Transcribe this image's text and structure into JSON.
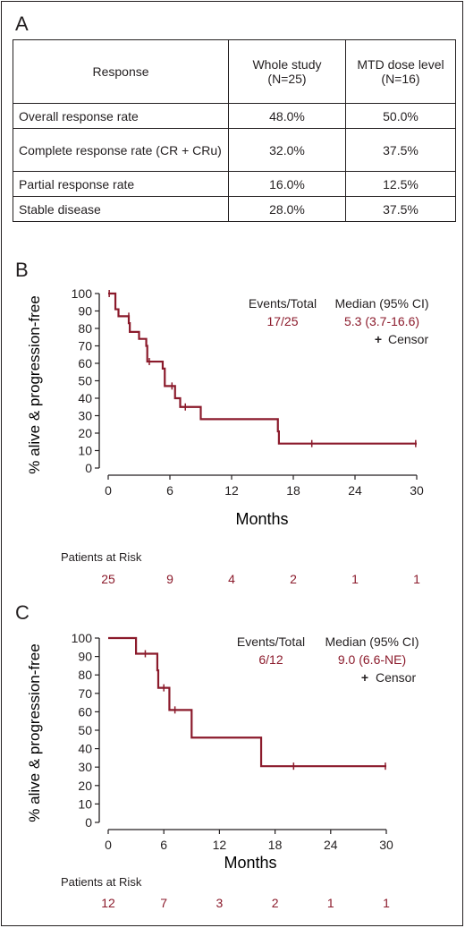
{
  "panel_a": {
    "label": "A",
    "headers": [
      "Response",
      "Whole study (N=25)",
      "MTD dose level (N=16)"
    ],
    "rows": [
      {
        "name": "Overall response rate",
        "whole": "48.0%",
        "mtd": "50.0%"
      },
      {
        "name": "Complete response rate (CR + CRu)",
        "whole": "32.0%",
        "mtd": "37.5%"
      },
      {
        "name": "Partial response rate",
        "whole": "16.0%",
        "mtd": "12.5%"
      },
      {
        "name": "Stable disease",
        "whole": "28.0%",
        "mtd": "37.5%"
      }
    ]
  },
  "panel_b": {
    "label": "B",
    "events_header": "Events/Total",
    "events_value": "17/25",
    "median_header": "Median (95% CI)",
    "median_value": "5.3 (3.7-16.6)",
    "censor_symbol": "+",
    "censor_label": "Censor",
    "risk_title": "Patients at Risk",
    "risk_counts": [
      "25",
      "9",
      "4",
      "2",
      "1",
      "1"
    ]
  },
  "panel_c": {
    "label": "C",
    "events_header": "Events/Total",
    "events_value": "6/12",
    "median_header": "Median (95% CI)",
    "median_value": "9.0 (6.6-NE)",
    "censor_symbol": "+",
    "censor_label": "Censor",
    "risk_title": "Patients at Risk",
    "risk_counts": [
      "12",
      "7",
      "3",
      "2",
      "1",
      "1"
    ]
  },
  "colors": {
    "curve": "#8b1a2b",
    "text": "#231f20",
    "highlight": "#8b1a2b"
  },
  "chart_data": [
    {
      "type": "line",
      "subtype": "kaplan-meier-step",
      "xlabel": "Months",
      "ylabel": "% alive & progression-free",
      "xlim": [
        0,
        30
      ],
      "ylim": [
        0,
        100
      ],
      "xticks": [
        0,
        6,
        12,
        18,
        24,
        30
      ],
      "yticks": [
        0,
        10,
        20,
        30,
        40,
        50,
        60,
        70,
        80,
        90,
        100
      ],
      "grid": false,
      "series": [
        {
          "steps": [
            [
              0,
              100
            ],
            [
              0.7,
              91
            ],
            [
              1,
              87
            ],
            [
              2,
              83
            ],
            [
              2.1,
              78
            ],
            [
              2.6,
              78
            ],
            [
              3,
              74
            ],
            [
              3.7,
              70
            ],
            [
              3.8,
              61
            ],
            [
              5.3,
              57
            ],
            [
              5.5,
              47
            ],
            [
              6.3,
              47
            ],
            [
              6.5,
              40
            ],
            [
              7,
              35
            ],
            [
              9,
              28
            ],
            [
              16.5,
              21
            ],
            [
              16.6,
              14
            ],
            [
              30,
              14
            ]
          ],
          "censors": [
            [
              0.1,
              100
            ],
            [
              2,
              87
            ],
            [
              4,
              61
            ],
            [
              6.2,
              47
            ],
            [
              7.5,
              35
            ],
            [
              19.8,
              14
            ],
            [
              29.9,
              14
            ]
          ]
        }
      ]
    },
    {
      "type": "line",
      "subtype": "kaplan-meier-step",
      "xlabel": "Months",
      "ylabel": "% alive & progression-free",
      "xlim": [
        0,
        30
      ],
      "ylim": [
        0,
        100
      ],
      "xticks": [
        0,
        6,
        12,
        18,
        24,
        30
      ],
      "yticks": [
        0,
        10,
        20,
        30,
        40,
        50,
        60,
        70,
        80,
        90,
        100
      ],
      "grid": false,
      "series": [
        {
          "steps": [
            [
              0,
              100
            ],
            [
              3,
              91.5
            ],
            [
              5.3,
              82.5
            ],
            [
              5.4,
              73
            ],
            [
              6.6,
              61
            ],
            [
              9,
              46
            ],
            [
              16.5,
              30.5
            ],
            [
              30,
              30.5
            ]
          ],
          "censors": [
            [
              4,
              91.5
            ],
            [
              6,
              73
            ],
            [
              7.2,
              61
            ],
            [
              20,
              30.5
            ],
            [
              29.9,
              30.5
            ]
          ]
        }
      ]
    }
  ]
}
